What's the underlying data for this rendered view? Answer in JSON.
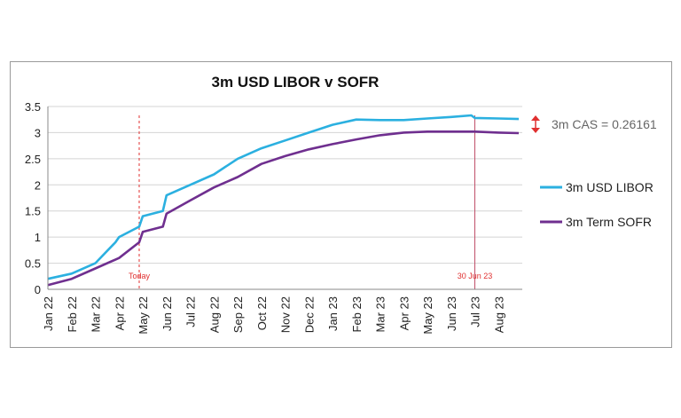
{
  "chart_data": {
    "type": "line",
    "title": "3m USD LIBOR v SOFR",
    "xlabel": "",
    "ylabel": "",
    "ylim": [
      0,
      3.5
    ],
    "yticks": [
      "0",
      "0.5",
      "1",
      "1.5",
      "2",
      "2.5",
      "3",
      "3.5"
    ],
    "xticks": [
      "Jan 22",
      "Feb 22",
      "Mar 22",
      "Apr 22",
      "May 22",
      "Jun 22",
      "Jul 22",
      "Aug 22",
      "Sep 22",
      "Oct 22",
      "Nov 22",
      "Dec 22",
      "Jan 23",
      "Feb 23",
      "Mar 23",
      "Apr 23",
      "May 23",
      "Jun 23",
      "Jul 23",
      "Aug 23"
    ],
    "grid": "horizontal",
    "legend_position": "right",
    "series": [
      {
        "name": "3m USD LIBOR",
        "color": "#2bb0e0",
        "x": [
          "Jan 22",
          "Feb 22",
          "Mar 22",
          "Mar 22",
          "Apr 22",
          "Apr 22",
          "May 22",
          "May 22",
          "Jun 22",
          "Jul 22",
          "Aug 22",
          "Sep 22",
          "Oct 22",
          "Nov 22",
          "Dec 22",
          "Jan 23",
          "Feb 23",
          "Mar 23",
          "Apr 23",
          "May 23",
          "Jun 23",
          "Jun 23",
          "Jul 23",
          "Aug 23",
          "Aug 23"
        ],
        "values": [
          0.2,
          0.3,
          0.5,
          0.9,
          1.0,
          1.2,
          1.4,
          1.5,
          1.8,
          2.0,
          2.2,
          2.5,
          2.7,
          2.85,
          3.0,
          3.15,
          3.25,
          3.24,
          3.24,
          3.27,
          3.3,
          3.33,
          3.28,
          3.27,
          3.26
        ]
      },
      {
        "name": "3m Term SOFR",
        "color": "#6f2f8f",
        "x": [
          "Jan 22",
          "Feb 22",
          "Mar 22",
          "Apr 22",
          "Apr 22",
          "May 22",
          "May 22",
          "Jun 22",
          "Jul 22",
          "Aug 22",
          "Sep 22",
          "Oct 22",
          "Nov 22",
          "Dec 22",
          "Jan 23",
          "Feb 23",
          "Mar 23",
          "Apr 23",
          "May 23",
          "Jun 23",
          "Jul 23",
          "Aug 23",
          "Aug 23"
        ],
        "values": [
          0.08,
          0.2,
          0.4,
          0.6,
          0.9,
          1.1,
          1.2,
          1.45,
          1.7,
          1.95,
          2.15,
          2.4,
          2.55,
          2.68,
          2.78,
          2.87,
          2.95,
          3.0,
          3.02,
          3.02,
          3.02,
          3.0,
          2.99
        ]
      }
    ],
    "annotations": [
      {
        "label": "Today",
        "x": "May 22",
        "color": "#e03030",
        "style": "dashed"
      },
      {
        "label": "30 Jun 23",
        "x": "Jul 23",
        "color": "#c0506a",
        "style": "solid"
      }
    ],
    "spread_label": "3m CAS = 0.26161",
    "spread_color": "#e03030"
  }
}
